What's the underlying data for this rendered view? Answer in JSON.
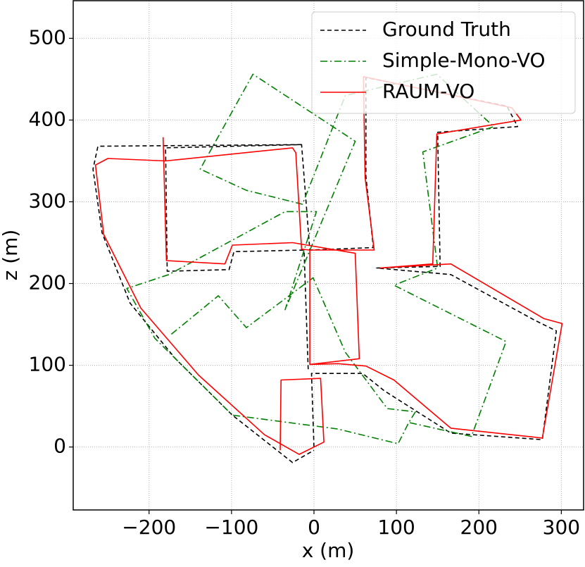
{
  "chart_data": {
    "type": "line",
    "x_label": "x (m)",
    "y_label": "z (m)",
    "xlim": [
      -292,
      327
    ],
    "ylim": [
      -77,
      546
    ],
    "xticks": [
      {
        "value": -200,
        "label": "−200"
      },
      {
        "value": -100,
        "label": "−100"
      },
      0,
      100,
      200,
      300
    ],
    "yticks": [
      0,
      100,
      200,
      300,
      400,
      500
    ],
    "grid": true,
    "legend": "upper right",
    "series": [
      {
        "name": "Ground Truth",
        "color": "#000000",
        "linestyle": "dashed",
        "x": [
          0,
          -3,
          59,
          85,
          166,
          277,
          294,
          268,
          166,
          76,
          153,
          150,
          247,
          234,
          63,
          63,
          72,
          -5,
          -15,
          -180,
          -178,
          -103,
          -97,
          -12,
          -7,
          null,
          -15,
          -262,
          -268,
          -257,
          -223,
          -168,
          -99,
          -26,
          0
        ],
        "values": [
          0,
          90,
          90,
          69,
          17,
          9,
          142,
          155,
          211,
          219,
          221,
          385,
          392,
          417,
          452,
          331,
          244,
          241,
          370,
          366,
          215,
          217,
          239,
          241,
          95,
          null,
          370,
          368,
          340,
          262,
          176,
          108,
          39,
          -19,
          -4
        ]
      },
      {
        "name": "Simple-Mono-VO",
        "color": "#008000",
        "linestyle": "dashdot",
        "x": [
          -173,
          -116,
          -82,
          -1,
          38,
          89,
          123,
          115,
          102,
          29,
          -99,
          -193,
          -227,
          -176,
          -35,
          3,
          -35,
          50,
          -74,
          -138,
          -82,
          -14,
          38,
          149,
          218,
          132,
          150,
          97,
          233,
          191,
          115
        ],
        "values": [
          138,
          185,
          146,
          207,
          116,
          47,
          43,
          30,
          4,
          22,
          39,
          133,
          194,
          211,
          288,
          288,
          168,
          374,
          456,
          340,
          314,
          297,
          430,
          456,
          392,
          361,
          219,
          198,
          129,
          13,
          30
        ]
      },
      {
        "name": "RAUM-VO",
        "color": "#ff0000",
        "linestyle": "solid",
        "x": [
          -41,
          -40,
          8,
          12,
          -18,
          -60,
          -140,
          -210,
          -255,
          -265,
          -250,
          -180,
          -26,
          -22,
          -15,
          -5,
          -5,
          29,
          63,
          97,
          166,
          277,
          301,
          279,
          166,
          80,
          144,
          149,
          251,
          240,
          60,
          62,
          73,
          -5,
          null,
          -183,
          -179,
          -108,
          -99,
          -26,
          50,
          55,
          -5
        ],
        "values": [
          -4,
          82,
          84,
          6,
          -9,
          15,
          88,
          170,
          260,
          345,
          353,
          350,
          366,
          360,
          242,
          241,
          101,
          102,
          99,
          82,
          23,
          11,
          151,
          157,
          224,
          219,
          224,
          383,
          400,
          415,
          453,
          330,
          241,
          241,
          null,
          379,
          228,
          224,
          247,
          250,
          237,
          108,
          101
        ]
      }
    ]
  }
}
